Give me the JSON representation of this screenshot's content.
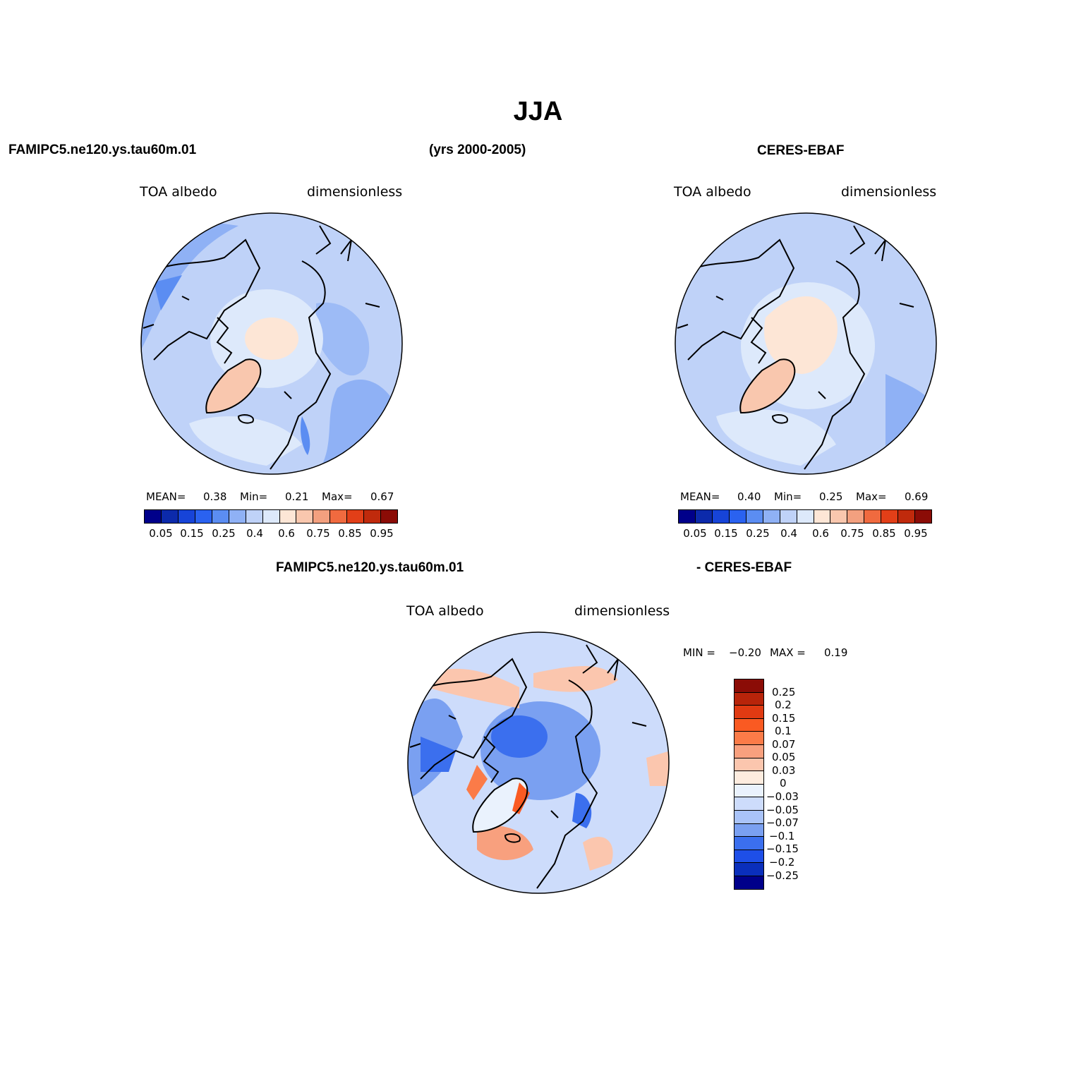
{
  "page": {
    "title": "JJA",
    "period": "(yrs 2000-2005)"
  },
  "panels": {
    "model": {
      "case": "FAMIPC5.ne120.ys.tau60m.01",
      "variable": "TOA albedo",
      "units": "dimensionless",
      "stats": {
        "mean_label": "MEAN=",
        "mean": "0.38",
        "min_label": "Min=",
        "min": "0.21",
        "max_label": "Max=",
        "max": "0.67"
      }
    },
    "obs": {
      "case": "CERES-EBAF",
      "variable": "TOA albedo",
      "units": "dimensionless",
      "stats": {
        "mean_label": "MEAN=",
        "mean": "0.40",
        "min_label": "Min=",
        "min": "0.25",
        "max_label": "Max=",
        "max": "0.69"
      }
    },
    "diff": {
      "case_left": "FAMIPC5.ne120.ys.tau60m.01",
      "case_right": "- CERES-EBAF",
      "variable": "TOA albedo",
      "units": "dimensionless",
      "min_label": "MIN =",
      "min": "−0.20",
      "max_label": "MAX =",
      "max": "0.19"
    }
  },
  "chart_data": [
    {
      "type": "heatmap",
      "projection": "north-polar-stereographic",
      "title": "FAMIPC5.ne120.ys.tau60m.01",
      "variable": "TOA albedo",
      "units": "dimensionless",
      "mean": 0.38,
      "min": 0.21,
      "max": 0.67,
      "colorbar_levels": [
        "0.05",
        "0.15",
        "0.25",
        "0.4",
        "0.6",
        "0.75",
        "0.85",
        "0.95"
      ],
      "colors": [
        "#00008a",
        "#0c2aab",
        "#1744d8",
        "#2a62f0",
        "#5b8df2",
        "#8fb1f5",
        "#bfd2f8",
        "#dde9fb",
        "#fde6d6",
        "#f9c7ae",
        "#f3a07f",
        "#f06a3f",
        "#e23f18",
        "#c02a0c",
        "#8b0c06"
      ]
    },
    {
      "type": "heatmap",
      "projection": "north-polar-stereographic",
      "title": "CERES-EBAF",
      "variable": "TOA albedo",
      "units": "dimensionless",
      "mean": 0.4,
      "min": 0.25,
      "max": 0.69,
      "colorbar_levels": [
        "0.05",
        "0.15",
        "0.25",
        "0.4",
        "0.6",
        "0.75",
        "0.85",
        "0.95"
      ],
      "colors": [
        "#00008a",
        "#0c2aab",
        "#1744d8",
        "#2a62f0",
        "#5b8df2",
        "#8fb1f5",
        "#bfd2f8",
        "#dde9fb",
        "#fde6d6",
        "#f9c7ae",
        "#f3a07f",
        "#f06a3f",
        "#e23f18",
        "#c02a0c",
        "#8b0c06"
      ]
    },
    {
      "type": "heatmap",
      "projection": "north-polar-stereographic",
      "title": "FAMIPC5.ne120.ys.tau60m.01 - CERES-EBAF",
      "variable": "TOA albedo",
      "units": "dimensionless",
      "min": -0.2,
      "max": 0.19,
      "colorbar_levels": [
        "0.25",
        "0.2",
        "0.15",
        "0.1",
        "0.07",
        "0.05",
        "0.03",
        "0",
        "−0.03",
        "−0.05",
        "−0.07",
        "−0.1",
        "−0.15",
        "−0.2",
        "−0.25"
      ],
      "colors": [
        "#8b0c06",
        "#b8240a",
        "#e03a12",
        "#fa5a22",
        "#fb7b48",
        "#f8a07e",
        "#fbc6ae",
        "#fdecdf",
        "#eaf2fd",
        "#cddcfb",
        "#a9c3f8",
        "#7aa0f1",
        "#3b6fee",
        "#1e4fe8",
        "#0a2fbc",
        "#00008a"
      ]
    }
  ]
}
